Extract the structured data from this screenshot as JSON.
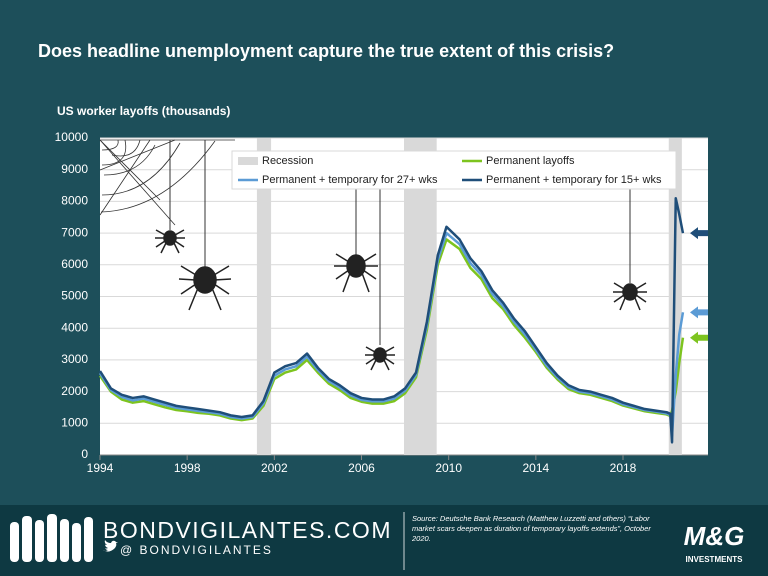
{
  "chart_data": {
    "type": "line",
    "title": "Does headline unemployment capture the true extent of this crisis?",
    "ylabel": "US worker layoffs (thousands)",
    "xlim": [
      1994,
      2021.9
    ],
    "xticks": [
      1994,
      1998,
      2002,
      2006,
      2010,
      2014,
      2018
    ],
    "ylim": [
      0,
      10000
    ],
    "yticks": [
      0,
      1000,
      2000,
      3000,
      4000,
      5000,
      6000,
      7000,
      8000,
      9000,
      10000
    ],
    "grid": true,
    "recessions": {
      "name": "Recession",
      "color": "#d9d9d9",
      "ranges": [
        [
          2001.2,
          2001.85
        ],
        [
          2007.95,
          2009.45
        ],
        [
          2020.1,
          2020.7
        ]
      ]
    },
    "x": [
      1994.0,
      1994.5,
      1995.0,
      1995.5,
      1996.0,
      1996.5,
      1997.0,
      1997.5,
      1998.0,
      1998.5,
      1999.0,
      1999.5,
      2000.0,
      2000.5,
      2001.0,
      2001.5,
      2002.0,
      2002.5,
      2003.0,
      2003.5,
      2004.0,
      2004.5,
      2005.0,
      2005.5,
      2006.0,
      2006.5,
      2007.0,
      2007.5,
      2008.0,
      2008.5,
      2009.0,
      2009.5,
      2009.9,
      2010.5,
      2011.0,
      2011.5,
      2012.0,
      2012.5,
      2013.0,
      2013.5,
      2014.0,
      2014.5,
      2015.0,
      2015.5,
      2016.0,
      2016.5,
      2017.0,
      2017.5,
      2018.0,
      2018.5,
      2019.0,
      2019.5,
      2020.0,
      2020.17,
      2020.25,
      2020.42,
      2020.58,
      2020.75
    ],
    "series": [
      {
        "name": "Permanent layoffs",
        "color": "#7dc41f",
        "values": [
          2500,
          2000,
          1750,
          1650,
          1700,
          1600,
          1500,
          1420,
          1380,
          1330,
          1300,
          1250,
          1150,
          1100,
          1150,
          1550,
          2400,
          2600,
          2700,
          3000,
          2600,
          2250,
          2050,
          1800,
          1680,
          1620,
          1620,
          1700,
          1950,
          2450,
          3950,
          6000,
          6800,
          6500,
          5900,
          5550,
          4950,
          4600,
          4100,
          3700,
          3250,
          2750,
          2380,
          2080,
          1950,
          1900,
          1800,
          1700,
          1560,
          1470,
          1380,
          1330,
          1280,
          1230,
          1400,
          2000,
          2900,
          3700
        ]
      },
      {
        "name": "Permanent + temporary for 27+ wks",
        "color": "#5b9bd5",
        "values": [
          2580,
          2050,
          1830,
          1720,
          1780,
          1680,
          1580,
          1490,
          1440,
          1390,
          1350,
          1300,
          1200,
          1150,
          1200,
          1630,
          2500,
          2700,
          2800,
          3100,
          2680,
          2330,
          2130,
          1880,
          1740,
          1690,
          1690,
          1780,
          2030,
          2530,
          4080,
          6150,
          7000,
          6650,
          6050,
          5680,
          5080,
          4700,
          4200,
          3800,
          3320,
          2820,
          2440,
          2140,
          2000,
          1950,
          1850,
          1750,
          1600,
          1510,
          1420,
          1370,
          1310,
          1260,
          600,
          2500,
          3800,
          4500
        ]
      },
      {
        "name": "Permanent + temporary for 15+ wks",
        "color": "#1f4e79",
        "values": [
          2650,
          2100,
          1900,
          1800,
          1850,
          1750,
          1650,
          1550,
          1500,
          1450,
          1400,
          1350,
          1250,
          1200,
          1250,
          1700,
          2600,
          2800,
          2900,
          3200,
          2750,
          2400,
          2200,
          1950,
          1800,
          1750,
          1750,
          1850,
          2100,
          2600,
          4200,
          6300,
          7200,
          6800,
          6200,
          5800,
          5200,
          4800,
          4300,
          3900,
          3400,
          2900,
          2500,
          2200,
          2050,
          2000,
          1900,
          1800,
          1650,
          1550,
          1450,
          1400,
          1350,
          1300,
          400,
          8100,
          7600,
          7000
        ]
      }
    ]
  },
  "footer": {
    "site": "BONDVIGILANTES.COM",
    "handle": "@ BONDVIGILANTES",
    "source": "Source: Deutsche Bank Research (Matthew Luzzetti and others) “Labor market scars deepen as duration of temporary layoffs extends”, October 2020.",
    "logo": "M&G",
    "logo_sub": "INVESTMENTS"
  }
}
